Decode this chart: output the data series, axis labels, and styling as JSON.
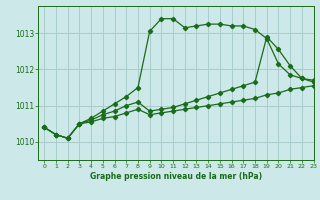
{
  "title": "Graphe pression niveau de la mer (hPa)",
  "bg_color": "#cce8e8",
  "grid_color": "#aacccc",
  "line_color": "#1a6b1a",
  "xlim": [
    -0.5,
    23
  ],
  "ylim": [
    1009.5,
    1013.75
  ],
  "yticks": [
    1010,
    1011,
    1012,
    1013
  ],
  "xticks": [
    0,
    1,
    2,
    3,
    4,
    5,
    6,
    7,
    8,
    9,
    10,
    11,
    12,
    13,
    14,
    15,
    16,
    17,
    18,
    19,
    20,
    21,
    22,
    23
  ],
  "line1_x": [
    0,
    1,
    2,
    3,
    4,
    5,
    6,
    7,
    8,
    9,
    10,
    11,
    12,
    13,
    14,
    15,
    16,
    17,
    18,
    19,
    20,
    21,
    22,
    23
  ],
  "line1_y": [
    1010.4,
    1010.2,
    1010.1,
    1010.5,
    1010.65,
    1010.85,
    1011.05,
    1011.25,
    1011.5,
    1013.05,
    1013.4,
    1013.4,
    1013.15,
    1013.2,
    1013.25,
    1013.25,
    1013.2,
    1013.2,
    1013.1,
    1012.85,
    1012.15,
    1011.85,
    1011.75,
    1011.7
  ],
  "line2_x": [
    0,
    1,
    2,
    3,
    4,
    5,
    6,
    7,
    8,
    9,
    10,
    11,
    12,
    13,
    14,
    15,
    16,
    17,
    18,
    19,
    20,
    21,
    22,
    23
  ],
  "line2_y": [
    1010.4,
    1010.2,
    1010.1,
    1010.5,
    1010.6,
    1010.75,
    1010.85,
    1011.0,
    1011.1,
    1010.85,
    1010.9,
    1010.95,
    1011.05,
    1011.15,
    1011.25,
    1011.35,
    1011.45,
    1011.55,
    1011.65,
    1012.9,
    1012.55,
    1012.1,
    1011.75,
    1011.65
  ],
  "line3_x": [
    0,
    1,
    2,
    3,
    4,
    5,
    6,
    7,
    8,
    9,
    10,
    11,
    12,
    13,
    14,
    15,
    16,
    17,
    18,
    19,
    20,
    21,
    22,
    23
  ],
  "line3_y": [
    1010.4,
    1010.2,
    1010.1,
    1010.5,
    1010.55,
    1010.65,
    1010.7,
    1010.8,
    1010.9,
    1010.75,
    1010.8,
    1010.85,
    1010.9,
    1010.95,
    1011.0,
    1011.05,
    1011.1,
    1011.15,
    1011.2,
    1011.3,
    1011.35,
    1011.45,
    1011.5,
    1011.55
  ]
}
